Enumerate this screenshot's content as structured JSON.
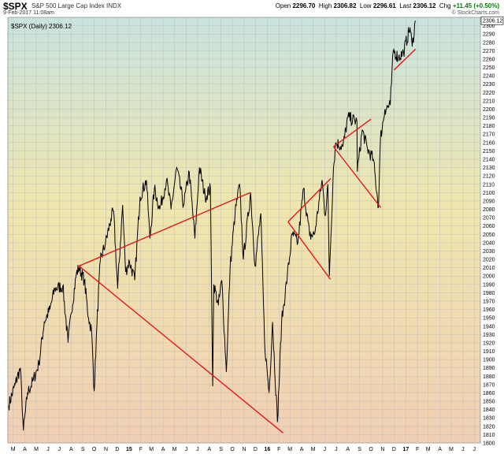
{
  "header": {
    "symbol": "$SPX",
    "name": "S&P 500 Large Cap Index  INDX",
    "date": "9-Feb-2017 11:08am",
    "open_label": "Open",
    "open": "2296.70",
    "high_label": "High",
    "high": "2306.82",
    "low_label": "Low",
    "low": "2296.61",
    "last_label": "Last",
    "last": "2306.12",
    "chg_label": "Chg",
    "chg": "+11.45 (+0.50%)",
    "brand": "© StockCharts.com"
  },
  "chart_data": {
    "type": "line",
    "legend": "$SPX (Daily) 2306.12",
    "last_value_label": "2306.12",
    "xlim": [
      "2014-03-01",
      "2017-07-31"
    ],
    "ylim": [
      1800,
      2310
    ],
    "y_ticks": [
      1800,
      1810,
      1820,
      1830,
      1840,
      1850,
      1860,
      1870,
      1880,
      1890,
      1900,
      1910,
      1920,
      1930,
      1940,
      1950,
      1960,
      1970,
      1980,
      1990,
      2000,
      2010,
      2020,
      2030,
      2040,
      2050,
      2060,
      2070,
      2080,
      2090,
      2100,
      2110,
      2120,
      2130,
      2140,
      2150,
      2160,
      2170,
      2180,
      2190,
      2200,
      2210,
      2220,
      2230,
      2240,
      2250,
      2260,
      2270,
      2280,
      2290,
      2300
    ],
    "x_ticks": [
      {
        "label": "M",
        "date": "2014-03-15"
      },
      {
        "label": "A",
        "date": "2014-04-15"
      },
      {
        "label": "M",
        "date": "2014-05-15"
      },
      {
        "label": "J",
        "date": "2014-06-15"
      },
      {
        "label": "J",
        "date": "2014-07-15"
      },
      {
        "label": "A",
        "date": "2014-08-15"
      },
      {
        "label": "S",
        "date": "2014-09-15"
      },
      {
        "label": "O",
        "date": "2014-10-15"
      },
      {
        "label": "N",
        "date": "2014-11-15"
      },
      {
        "label": "D",
        "date": "2014-12-15"
      },
      {
        "label": "15",
        "date": "2015-01-15",
        "year": true
      },
      {
        "label": "F",
        "date": "2015-02-15"
      },
      {
        "label": "M",
        "date": "2015-03-15"
      },
      {
        "label": "A",
        "date": "2015-04-15"
      },
      {
        "label": "M",
        "date": "2015-05-15"
      },
      {
        "label": "J",
        "date": "2015-06-15"
      },
      {
        "label": "J",
        "date": "2015-07-15"
      },
      {
        "label": "A",
        "date": "2015-08-15"
      },
      {
        "label": "S",
        "date": "2015-09-15"
      },
      {
        "label": "O",
        "date": "2015-10-15"
      },
      {
        "label": "N",
        "date": "2015-11-15"
      },
      {
        "label": "D",
        "date": "2015-12-15"
      },
      {
        "label": "16",
        "date": "2016-01-15",
        "year": true
      },
      {
        "label": "F",
        "date": "2016-02-15"
      },
      {
        "label": "M",
        "date": "2016-03-15"
      },
      {
        "label": "A",
        "date": "2016-04-15"
      },
      {
        "label": "M",
        "date": "2016-05-15"
      },
      {
        "label": "J",
        "date": "2016-06-15"
      },
      {
        "label": "J",
        "date": "2016-07-15"
      },
      {
        "label": "A",
        "date": "2016-08-15"
      },
      {
        "label": "S",
        "date": "2016-09-15"
      },
      {
        "label": "O",
        "date": "2016-10-15"
      },
      {
        "label": "N",
        "date": "2016-11-15"
      },
      {
        "label": "D",
        "date": "2016-12-15"
      },
      {
        "label": "17",
        "date": "2017-01-15",
        "year": true
      },
      {
        "label": "F",
        "date": "2017-02-15"
      },
      {
        "label": "M",
        "date": "2017-03-15"
      },
      {
        "label": "A",
        "date": "2017-04-15"
      },
      {
        "label": "M",
        "date": "2017-05-15"
      },
      {
        "label": "J",
        "date": "2017-06-15"
      },
      {
        "label": "J",
        "date": "2017-07-15"
      }
    ],
    "series": [
      {
        "x": [
          "2014-03-03",
          "2014-03-20",
          "2014-04-03",
          "2014-04-11",
          "2014-04-22",
          "2014-05-07",
          "2014-05-22",
          "2014-06-05",
          "2014-06-20",
          "2014-07-03",
          "2014-07-24",
          "2014-08-07",
          "2014-08-15",
          "2014-08-29",
          "2014-09-05",
          "2014-09-19",
          "2014-09-30",
          "2014-10-08",
          "2014-10-15",
          "2014-10-22",
          "2014-10-31",
          "2014-11-14",
          "2014-11-28",
          "2014-12-05",
          "2014-12-16",
          "2014-12-29",
          "2015-01-06",
          "2015-01-16",
          "2015-01-30",
          "2015-02-13",
          "2015-03-02",
          "2015-03-11",
          "2015-03-23",
          "2015-04-06",
          "2015-04-24",
          "2015-05-06",
          "2015-05-21",
          "2015-06-08",
          "2015-06-23",
          "2015-07-08",
          "2015-07-20",
          "2015-08-04",
          "2015-08-18",
          "2015-08-24",
          "2015-08-27",
          "2015-09-08",
          "2015-09-17",
          "2015-09-29",
          "2015-10-09",
          "2015-10-22",
          "2015-11-03",
          "2015-11-13",
          "2015-12-02",
          "2015-12-14",
          "2015-12-29",
          "2016-01-08",
          "2016-01-20",
          "2016-01-29",
          "2016-02-11",
          "2016-02-22",
          "2016-03-08",
          "2016-03-21",
          "2016-04-05",
          "2016-04-20",
          "2016-05-06",
          "2016-05-19",
          "2016-06-08",
          "2016-06-16",
          "2016-06-23",
          "2016-06-27",
          "2016-07-08",
          "2016-07-14",
          "2016-08-02",
          "2016-08-15",
          "2016-09-08",
          "2016-09-09",
          "2016-09-22",
          "2016-10-06",
          "2016-10-21",
          "2016-11-04",
          "2016-11-09",
          "2016-11-21",
          "2016-12-05",
          "2016-12-13",
          "2016-12-27",
          "2017-01-09",
          "2017-01-26",
          "2017-02-01",
          "2017-02-09"
        ],
        "y": [
          1845,
          1870,
          1890,
          1815,
          1860,
          1875,
          1895,
          1945,
          1960,
          1985,
          1988,
          1920,
          1955,
          2003,
          2010,
          1995,
          1950,
          1935,
          1862,
          1940,
          2018,
          2040,
          2068,
          2078,
          1985,
          2085,
          2005,
          2018,
          1995,
          2095,
          2115,
          2045,
          2105,
          2080,
          2115,
          2080,
          2130,
          2085,
          2125,
          2045,
          2130,
          2095,
          2105,
          1868,
          1990,
          1965,
          1995,
          1885,
          2010,
          2075,
          2110,
          2020,
          2100,
          2012,
          2075,
          1920,
          1860,
          1945,
          1825,
          1945,
          2000,
          2050,
          2040,
          2105,
          2048,
          2050,
          2115,
          2072,
          2110,
          2000,
          2130,
          2160,
          2155,
          2190,
          2185,
          2125,
          2175,
          2152,
          2140,
          2083,
          2165,
          2200,
          2205,
          2270,
          2262,
          2268,
          2298,
          2275,
          2306
        ]
      }
    ],
    "trendlines": [
      {
        "x": [
          "2014-09-05",
          "2015-12-01"
        ],
        "y": [
          2012,
          2100
        ]
      },
      {
        "x": [
          "2014-09-05",
          "2016-02-26"
        ],
        "y": [
          2012,
          1812
        ]
      },
      {
        "x": [
          "2016-03-10",
          "2016-06-30"
        ],
        "y": [
          2065,
          1996
        ]
      },
      {
        "x": [
          "2016-03-10",
          "2016-07-01"
        ],
        "y": [
          2065,
          2117
        ]
      },
      {
        "x": [
          "2016-07-08",
          "2016-11-10"
        ],
        "y": [
          2155,
          2082
        ]
      },
      {
        "x": [
          "2016-07-08",
          "2016-10-15"
        ],
        "y": [
          2155,
          2188
        ]
      },
      {
        "x": [
          "2016-12-15",
          "2017-02-10"
        ],
        "y": [
          2247,
          2272
        ]
      }
    ]
  }
}
